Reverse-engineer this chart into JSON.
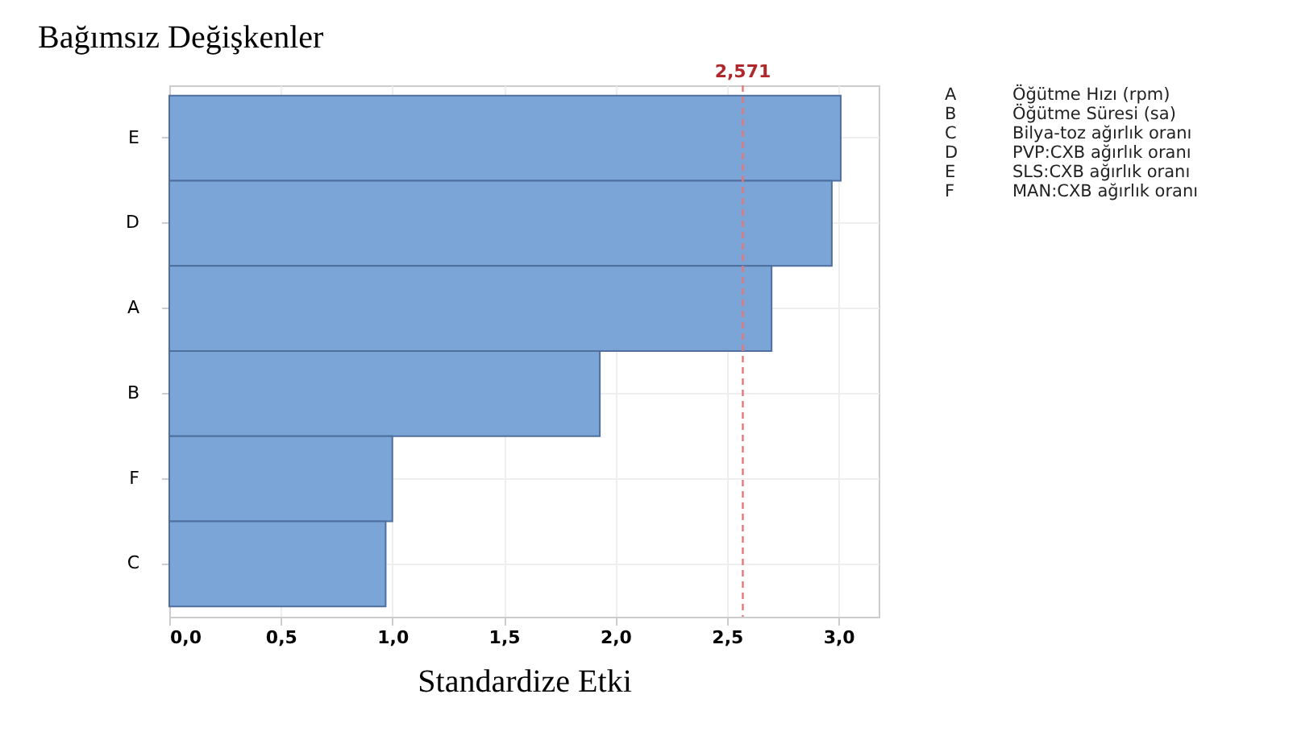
{
  "chart_data": {
    "type": "bar",
    "orientation": "horizontal",
    "ylabel": "Bağımsız Değişkenler",
    "xlabel": "Standardize Etki",
    "categories": [
      "E",
      "D",
      "A",
      "B",
      "F",
      "C"
    ],
    "values": [
      3.01,
      2.97,
      2.7,
      1.93,
      1.0,
      0.97
    ],
    "color": "#7aa5d6",
    "xlim": [
      0,
      3.18
    ],
    "xticks": [
      {
        "value": 0,
        "label": "0,0"
      },
      {
        "value": 0.5,
        "label": "0,5"
      },
      {
        "value": 1,
        "label": "1,0"
      },
      {
        "value": 1.5,
        "label": "1,5"
      },
      {
        "value": 2,
        "label": "2,0"
      },
      {
        "value": 2.5,
        "label": "2,5"
      },
      {
        "value": 3,
        "label": "3,0"
      }
    ],
    "ref_lines": [
      {
        "axis": "x",
        "value": 2.571,
        "label": "2,571",
        "color": "#e8767a",
        "line_style": "dashed"
      }
    ],
    "grid": true,
    "annotations": [
      "A Öğütme Hızı (rpm)",
      "B Öğütme Süresi (sa)",
      "C Bilya-toz ağırlık oranı",
      "D PVP:CXB ağırlık oranı",
      "E SLS:CXB ağırlık oranı",
      "F MAN:CXB ağırlık oranı"
    ]
  }
}
